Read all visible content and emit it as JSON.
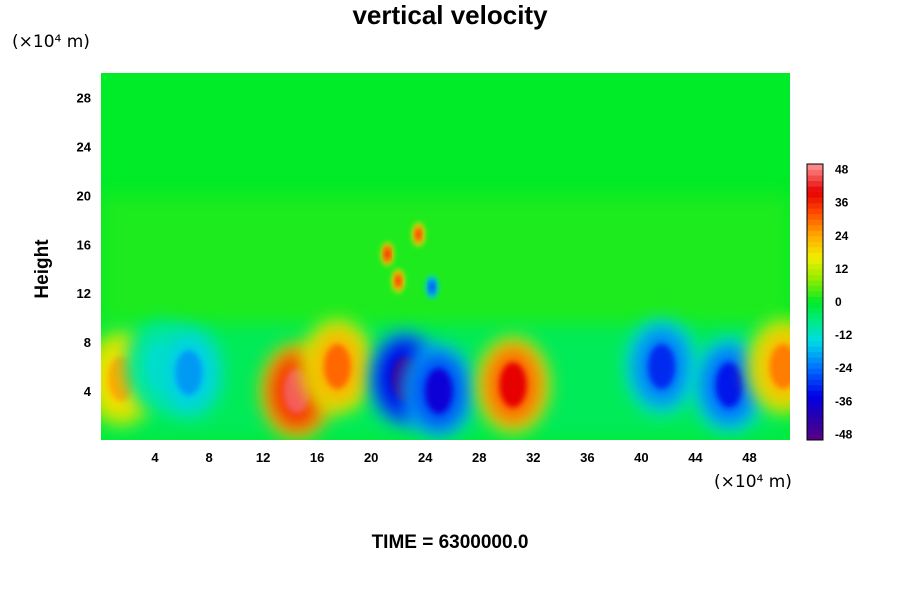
{
  "chart_data": {
    "type": "heatmap",
    "title": "vertical velocity",
    "ylabel": "Height",
    "xlabel": "",
    "y_unit": "(×10⁴ m)",
    "x_unit": "(×10⁴ m)",
    "footer": "TIME = 6300000.0",
    "xlim": [
      0,
      51
    ],
    "ylim": [
      0,
      30
    ],
    "x_ticks": [
      4,
      8,
      12,
      16,
      20,
      24,
      28,
      32,
      36,
      40,
      44,
      48
    ],
    "y_ticks": [
      4,
      8,
      12,
      16,
      20,
      24,
      28
    ],
    "colorbar": {
      "range": [
        -50,
        50
      ],
      "ticks": [
        48,
        36,
        24,
        12,
        0,
        -12,
        -24,
        -36,
        -48
      ]
    },
    "features": [
      {
        "x": 1.5,
        "y": 5.0,
        "value": 24
      },
      {
        "x": 4.5,
        "y": 6.0,
        "value": -14
      },
      {
        "x": 6.5,
        "y": 5.5,
        "value": -20
      },
      {
        "x": 14.5,
        "y": 4.0,
        "value": 46
      },
      {
        "x": 17.5,
        "y": 6.0,
        "value": 30
      },
      {
        "x": 22.5,
        "y": 5.0,
        "value": -45
      },
      {
        "x": 25.0,
        "y": 4.0,
        "value": -36
      },
      {
        "x": 30.5,
        "y": 4.5,
        "value": 40
      },
      {
        "x": 41.5,
        "y": 6.0,
        "value": -30
      },
      {
        "x": 46.5,
        "y": 4.5,
        "value": -32
      },
      {
        "x": 50.5,
        "y": 6.0,
        "value": 28
      },
      {
        "x": 21.2,
        "y": 15.2,
        "value": 38
      },
      {
        "x": 23.5,
        "y": 16.8,
        "value": 36
      },
      {
        "x": 22.0,
        "y": 13.0,
        "value": 36
      },
      {
        "x": 24.5,
        "y": 12.5,
        "value": -28
      }
    ]
  }
}
